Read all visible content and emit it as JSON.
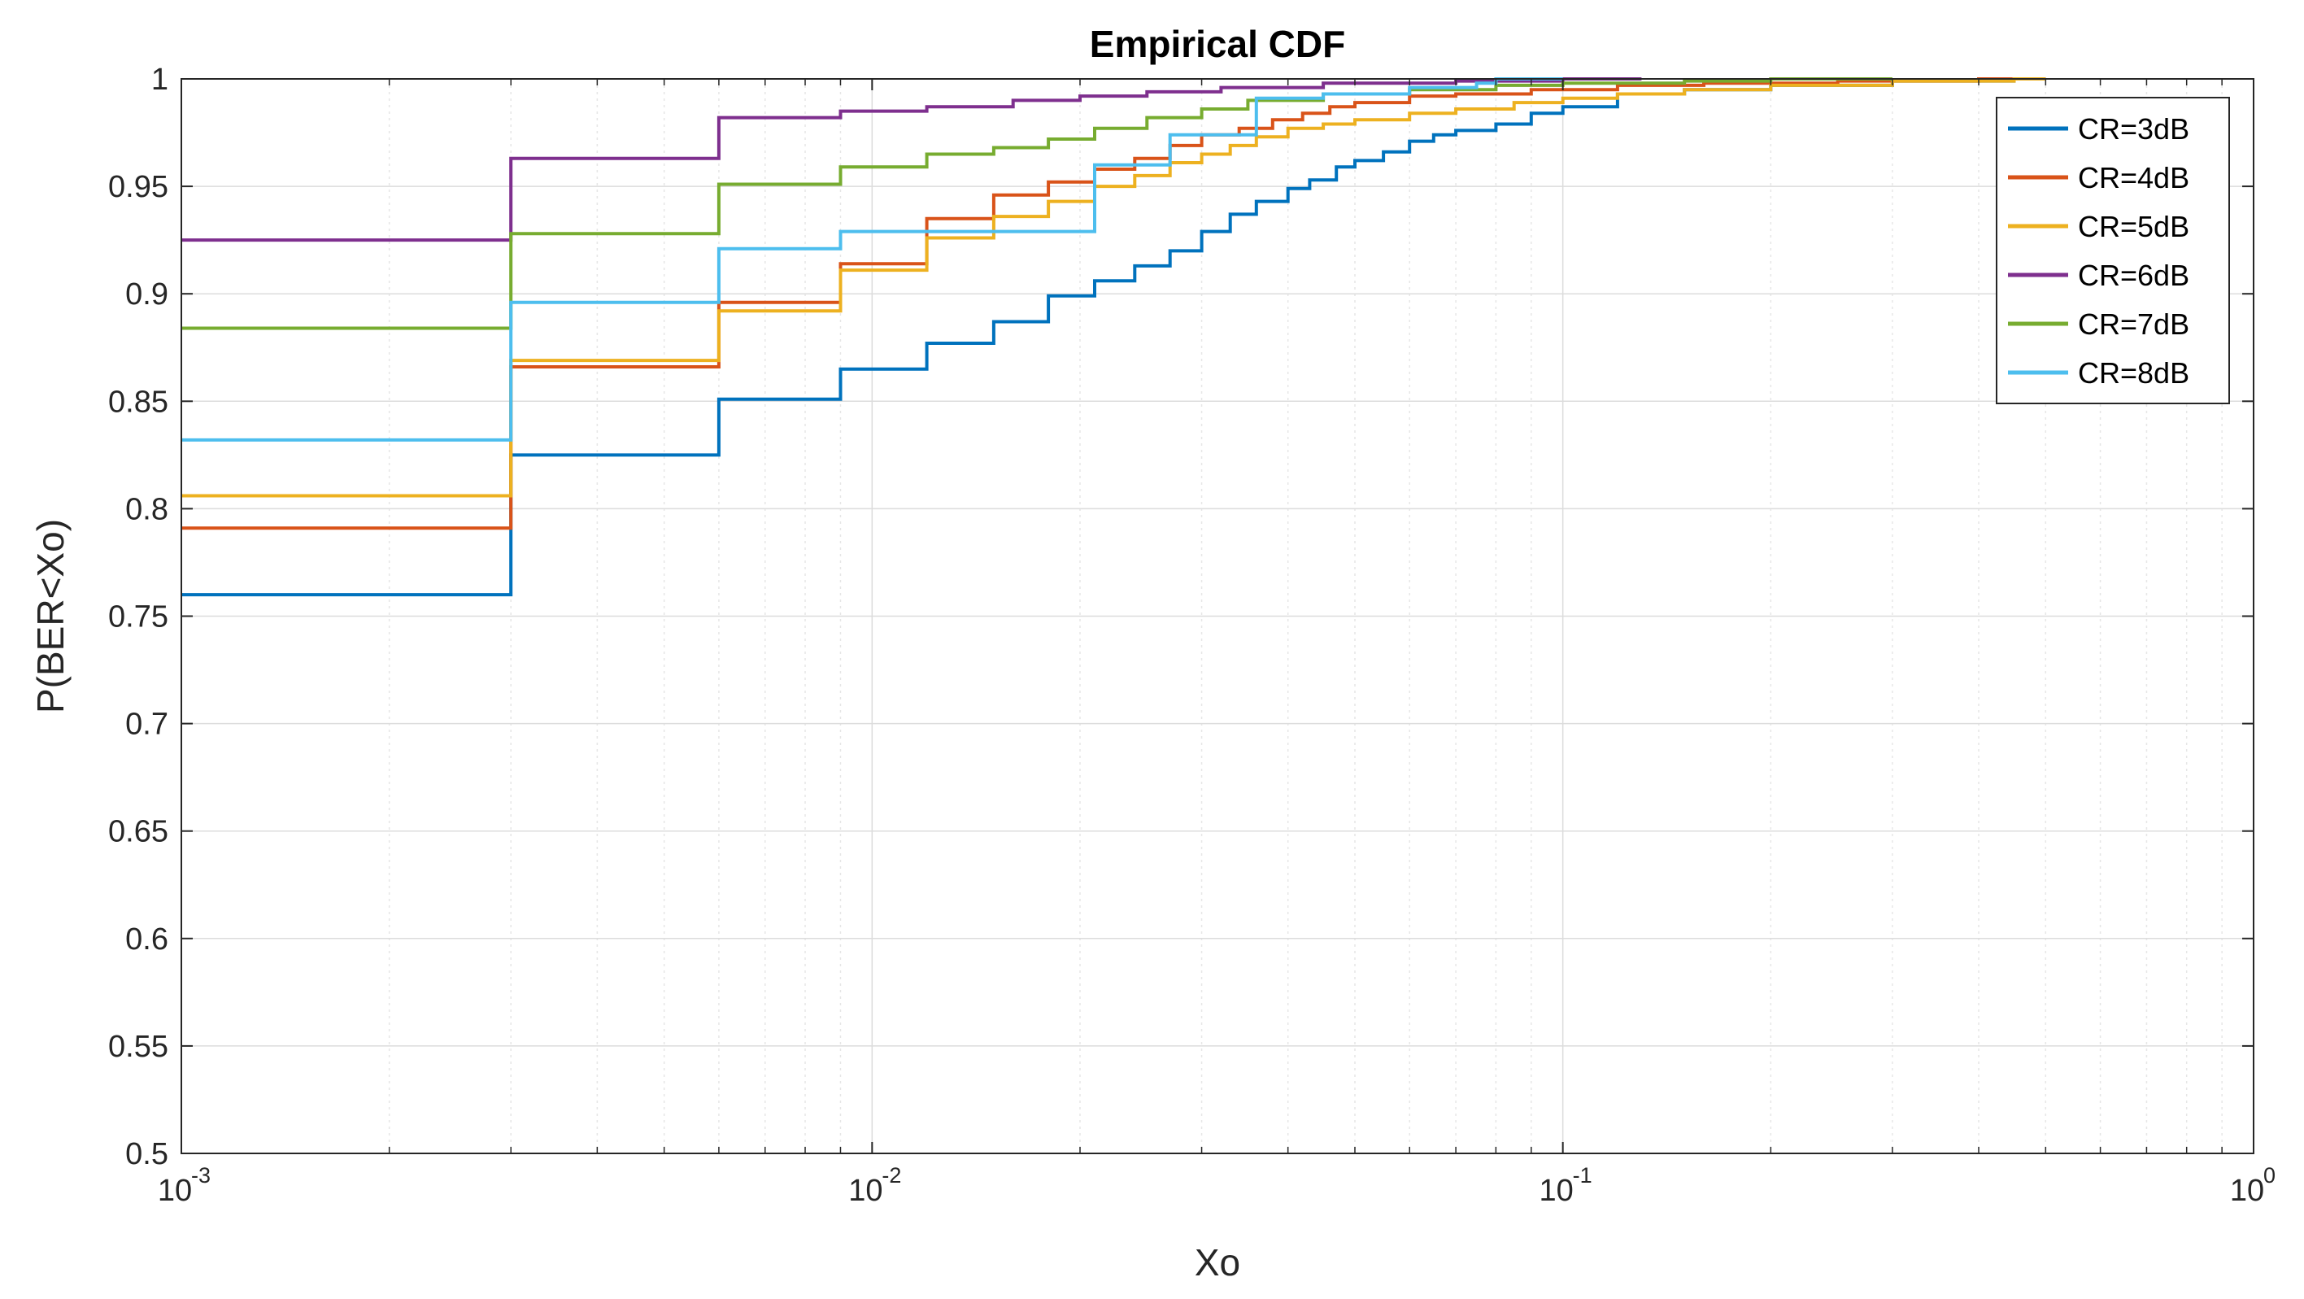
{
  "chart_data": {
    "type": "line",
    "subtype": "empirical-cdf-stairs",
    "title": "Empirical CDF",
    "xlabel": "Xo",
    "ylabel": "P(BER<Xo)",
    "xscale": "log",
    "xlim": [
      0.001,
      1
    ],
    "ylim": [
      0.5,
      1
    ],
    "grid": true,
    "minor_grid": true,
    "legend_position": "top-right",
    "x_ticks": [
      {
        "base": "10",
        "exp": "-3",
        "value": 0.001
      },
      {
        "base": "10",
        "exp": "-2",
        "value": 0.01
      },
      {
        "base": "10",
        "exp": "-1",
        "value": 0.1
      },
      {
        "base": "10",
        "exp": "0",
        "value": 1
      }
    ],
    "y_ticks": [
      "0.5",
      "0.55",
      "0.6",
      "0.65",
      "0.7",
      "0.75",
      "0.8",
      "0.85",
      "0.9",
      "0.95",
      "1"
    ],
    "series": [
      {
        "name": "CR=3dB",
        "color": "#0072BD",
        "points": [
          [
            0.001,
            0.76
          ],
          [
            0.003,
            0.825
          ],
          [
            0.006,
            0.851
          ],
          [
            0.009,
            0.865
          ],
          [
            0.012,
            0.877
          ],
          [
            0.015,
            0.887
          ],
          [
            0.018,
            0.899
          ],
          [
            0.021,
            0.906
          ],
          [
            0.024,
            0.913
          ],
          [
            0.027,
            0.92
          ],
          [
            0.03,
            0.929
          ],
          [
            0.033,
            0.937
          ],
          [
            0.036,
            0.943
          ],
          [
            0.04,
            0.949
          ],
          [
            0.043,
            0.953
          ],
          [
            0.047,
            0.959
          ],
          [
            0.05,
            0.962
          ],
          [
            0.055,
            0.966
          ],
          [
            0.06,
            0.971
          ],
          [
            0.065,
            0.974
          ],
          [
            0.07,
            0.976
          ],
          [
            0.08,
            0.979
          ],
          [
            0.09,
            0.984
          ],
          [
            0.1,
            0.987
          ],
          [
            0.12,
            0.993
          ],
          [
            0.15,
            0.995
          ],
          [
            0.2,
            0.997
          ],
          [
            0.3,
            0.999
          ],
          [
            0.45,
            1.0
          ],
          [
            0.5,
            1.0
          ]
        ]
      },
      {
        "name": "CR=4dB",
        "color": "#D95319",
        "points": [
          [
            0.001,
            0.791
          ],
          [
            0.003,
            0.866
          ],
          [
            0.006,
            0.896
          ],
          [
            0.009,
            0.914
          ],
          [
            0.012,
            0.935
          ],
          [
            0.015,
            0.946
          ],
          [
            0.018,
            0.952
          ],
          [
            0.021,
            0.958
          ],
          [
            0.024,
            0.963
          ],
          [
            0.027,
            0.969
          ],
          [
            0.03,
            0.974
          ],
          [
            0.034,
            0.977
          ],
          [
            0.038,
            0.981
          ],
          [
            0.042,
            0.984
          ],
          [
            0.046,
            0.987
          ],
          [
            0.05,
            0.989
          ],
          [
            0.06,
            0.992
          ],
          [
            0.07,
            0.993
          ],
          [
            0.09,
            0.995
          ],
          [
            0.12,
            0.997
          ],
          [
            0.16,
            0.998
          ],
          [
            0.25,
            0.999
          ],
          [
            0.4,
            1.0
          ],
          [
            0.5,
            1.0
          ]
        ]
      },
      {
        "name": "CR=5dB",
        "color": "#EDB120",
        "points": [
          [
            0.001,
            0.806
          ],
          [
            0.003,
            0.869
          ],
          [
            0.006,
            0.892
          ],
          [
            0.009,
            0.911
          ],
          [
            0.012,
            0.926
          ],
          [
            0.015,
            0.936
          ],
          [
            0.018,
            0.943
          ],
          [
            0.021,
            0.95
          ],
          [
            0.024,
            0.955
          ],
          [
            0.027,
            0.961
          ],
          [
            0.03,
            0.965
          ],
          [
            0.033,
            0.969
          ],
          [
            0.036,
            0.973
          ],
          [
            0.04,
            0.977
          ],
          [
            0.045,
            0.979
          ],
          [
            0.05,
            0.981
          ],
          [
            0.06,
            0.984
          ],
          [
            0.07,
            0.986
          ],
          [
            0.085,
            0.989
          ],
          [
            0.1,
            0.991
          ],
          [
            0.12,
            0.993
          ],
          [
            0.15,
            0.995
          ],
          [
            0.2,
            0.997
          ],
          [
            0.3,
            0.999
          ],
          [
            0.45,
            1.0
          ],
          [
            0.5,
            1.0
          ]
        ]
      },
      {
        "name": "CR=6dB",
        "color": "#7E2F8E",
        "points": [
          [
            0.001,
            0.925
          ],
          [
            0.003,
            0.963
          ],
          [
            0.006,
            0.982
          ],
          [
            0.009,
            0.985
          ],
          [
            0.012,
            0.987
          ],
          [
            0.016,
            0.99
          ],
          [
            0.02,
            0.992
          ],
          [
            0.025,
            0.994
          ],
          [
            0.032,
            0.996
          ],
          [
            0.045,
            0.998
          ],
          [
            0.07,
            0.999
          ],
          [
            0.1,
            1.0
          ],
          [
            0.13,
            1.0
          ]
        ]
      },
      {
        "name": "CR=7dB",
        "color": "#77AC30",
        "points": [
          [
            0.001,
            0.884
          ],
          [
            0.003,
            0.928
          ],
          [
            0.006,
            0.951
          ],
          [
            0.009,
            0.959
          ],
          [
            0.012,
            0.965
          ],
          [
            0.015,
            0.968
          ],
          [
            0.018,
            0.972
          ],
          [
            0.021,
            0.977
          ],
          [
            0.025,
            0.982
          ],
          [
            0.03,
            0.986
          ],
          [
            0.035,
            0.99
          ],
          [
            0.045,
            0.993
          ],
          [
            0.06,
            0.995
          ],
          [
            0.08,
            0.997
          ],
          [
            0.1,
            0.998
          ],
          [
            0.15,
            0.999
          ],
          [
            0.2,
            1.0
          ],
          [
            0.3,
            1.0
          ]
        ]
      },
      {
        "name": "CR=8dB",
        "color": "#4DBEEE",
        "points": [
          [
            0.001,
            0.832
          ],
          [
            0.003,
            0.896
          ],
          [
            0.006,
            0.921
          ],
          [
            0.009,
            0.929
          ],
          [
            0.021,
            0.96
          ],
          [
            0.027,
            0.974
          ],
          [
            0.036,
            0.991
          ],
          [
            0.045,
            0.993
          ],
          [
            0.06,
            0.996
          ],
          [
            0.075,
            0.998
          ],
          [
            0.08,
            1.0
          ],
          [
            0.1,
            1.0
          ]
        ]
      }
    ]
  }
}
